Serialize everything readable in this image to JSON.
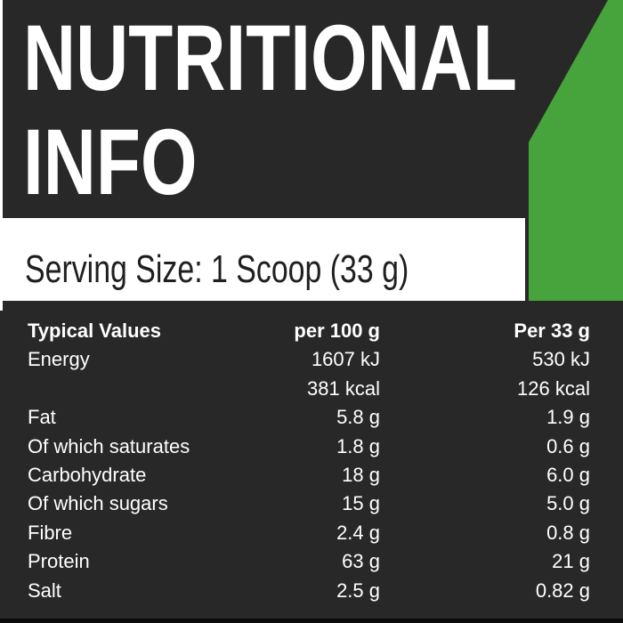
{
  "label": {
    "title_line1": "NUTRITIONAL",
    "title_line2": "INFO",
    "serving_size": "Serving Size: 1 Scoop (33 g)",
    "table": {
      "columns": [
        "Typical Values",
        "per 100 g",
        "Per 33 g"
      ],
      "rows": [
        [
          "Energy",
          "1607 kJ",
          "530 kJ"
        ],
        [
          "",
          "381 kcal",
          "126 kcal"
        ],
        [
          "Fat",
          "5.8 g",
          "1.9 g"
        ],
        [
          "Of which saturates",
          "1.8 g",
          "0.6 g"
        ],
        [
          "Carbohydrate",
          "18 g",
          "6.0 g"
        ],
        [
          "Of which sugars",
          "15 g",
          "5.0 g"
        ],
        [
          "Fibre",
          "2.4 g",
          "0.8 g"
        ],
        [
          "Protein",
          "63 g",
          "21 g"
        ],
        [
          "Salt",
          "2.5 g",
          "0.82 g"
        ]
      ]
    },
    "colors": {
      "background_dark": "#282828",
      "accent_green": "#47a33b",
      "band_white": "#ffffff",
      "text_light": "#ffffff",
      "text_dark": "#1f1f1f"
    }
  }
}
